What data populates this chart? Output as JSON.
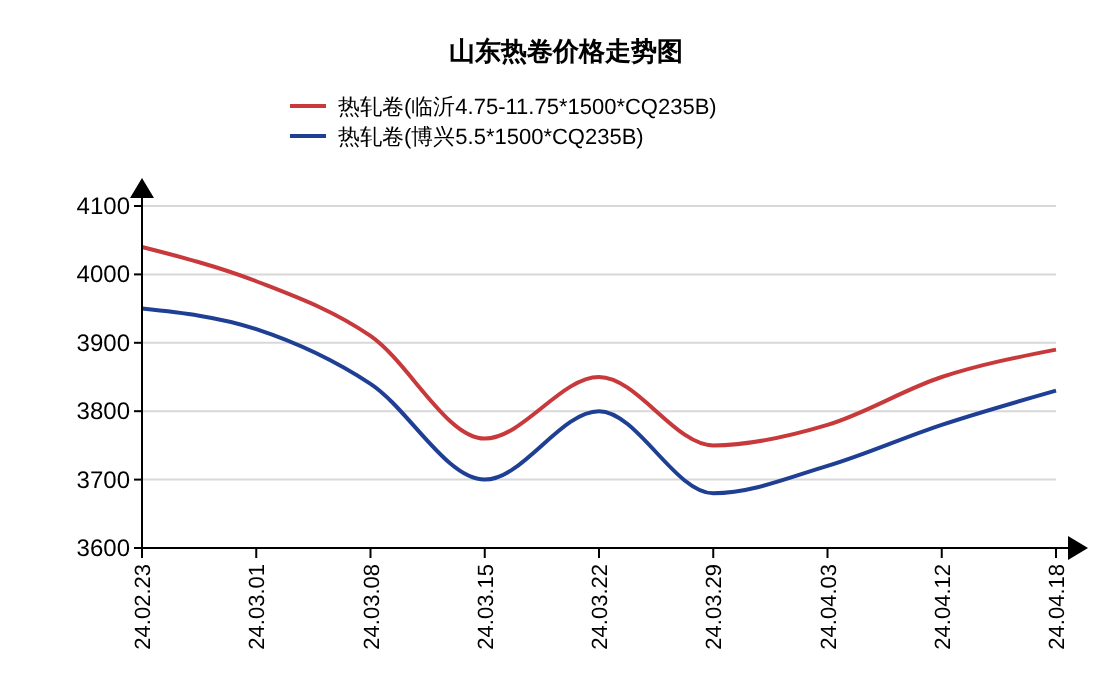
{
  "chart_data": {
    "type": "line",
    "title": "山东热卷价格走势图",
    "categories": [
      "24.02.23",
      "24.03.01",
      "24.03.08",
      "24.03.15",
      "24.03.22",
      "24.03.29",
      "24.04.03",
      "24.04.12",
      "24.04.18"
    ],
    "series": [
      {
        "name": "热轧卷(临沂4.75-11.75*1500*CQ235B)",
        "color": "#c8393b",
        "values": [
          4040,
          3990,
          3910,
          3760,
          3850,
          3750,
          3780,
          3850,
          3890
        ]
      },
      {
        "name": "热轧卷(博兴5.5*1500*CQ235B)",
        "color": "#1f3f95",
        "values": [
          3950,
          3920,
          3840,
          3700,
          3800,
          3680,
          3720,
          3780,
          3830
        ]
      }
    ],
    "ylim": [
      3600,
      4100
    ],
    "yticks": [
      3600,
      3700,
      3800,
      3900,
      4000,
      4100
    ],
    "grid": "y",
    "legend": "top",
    "marker": "none",
    "line_style": "solid"
  }
}
